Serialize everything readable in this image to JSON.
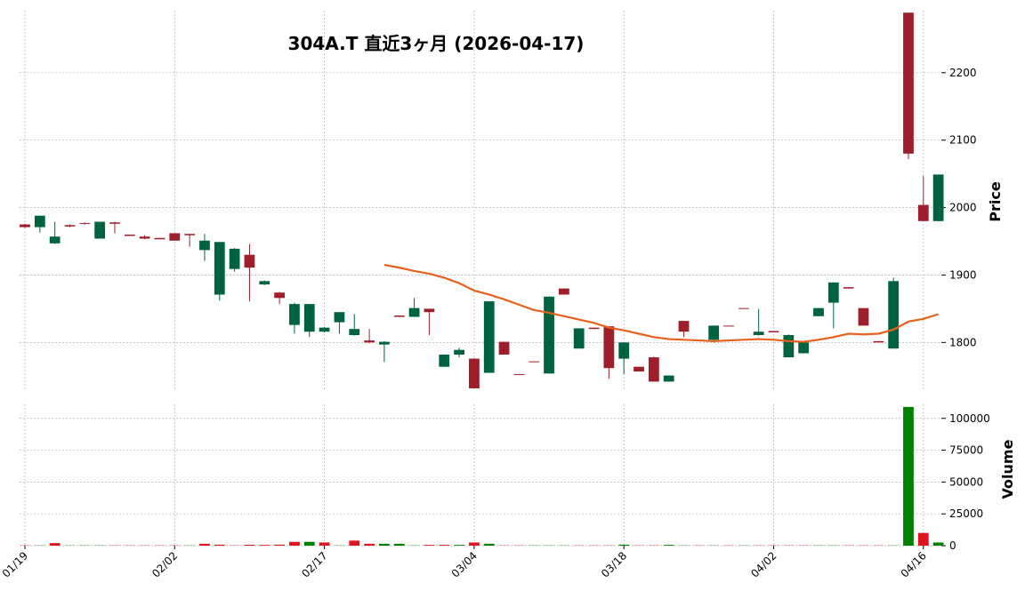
{
  "chart_data": {
    "type": "candlestick",
    "title": "304A.T  直近3ヶ月  (2026-04-17)",
    "ylabel": "Price",
    "y2label": "Volume",
    "categories": [
      "01/19",
      null,
      null,
      null,
      null,
      null,
      null,
      null,
      null,
      null,
      "02/02",
      null,
      null,
      null,
      null,
      null,
      null,
      null,
      null,
      null,
      "02/17",
      null,
      null,
      null,
      null,
      null,
      null,
      null,
      null,
      null,
      "03/04",
      null,
      null,
      null,
      null,
      null,
      null,
      null,
      null,
      null,
      "03/18",
      null,
      null,
      null,
      null,
      null,
      null,
      null,
      null,
      null,
      "04/02",
      null,
      null,
      null,
      null,
      null,
      null,
      null,
      null,
      null,
      "04/16",
      null
    ],
    "open": [
      1975,
      1971,
      1947,
      1974,
      1977,
      1954,
      1978,
      1960,
      1957,
      1955,
      1962,
      1961,
      1937,
      1871,
      1909,
      1930,
      1886,
      1874,
      1826,
      1816,
      1816,
      1830,
      1811,
      1803,
      1797,
      1840,
      1838,
      1850,
      1764,
      1782,
      1776,
      1755,
      1801,
      1753,
      1772,
      1754,
      1880,
      1791,
      1822,
      1824,
      1776,
      1764,
      1778,
      1742,
      1832,
      1804,
      1804,
      1825,
      1851,
      1811,
      1817,
      1778,
      1784,
      1839,
      1859,
      1882,
      1851,
      1802,
      1791,
      2289,
      2004,
      1980
    ],
    "high": [
      1976,
      1988,
      1979,
      1975,
      1978,
      1979,
      1979,
      1960,
      1959,
      1955,
      1962,
      1961,
      1961,
      1949,
      1940,
      1946,
      1892,
      1875,
      1859,
      1857,
      1823,
      1845,
      1842,
      1820,
      1802,
      1840,
      1866,
      1850,
      1782,
      1792,
      1777,
      1861,
      1801,
      1753,
      1772,
      1868,
      1880,
      1821,
      1822,
      1824,
      1800,
      1764,
      1779,
      1751,
      1832,
      1804,
      1825,
      1825,
      1851,
      1850,
      1817,
      1812,
      1800,
      1851,
      1889,
      1882,
      1851,
      1802,
      1896,
      2289,
      2047,
      2049
    ],
    "low": [
      1970,
      1963,
      1946,
      1971,
      1975,
      1954,
      1962,
      1958,
      1953,
      1953,
      1951,
      1942,
      1921,
      1862,
      1905,
      1861,
      1885,
      1857,
      1813,
      1808,
      1815,
      1813,
      1810,
      1799,
      1771,
      1838,
      1838,
      1811,
      1764,
      1778,
      1732,
      1755,
      1782,
      1752,
      1771,
      1754,
      1871,
      1791,
      1820,
      1746,
      1753,
      1757,
      1742,
      1742,
      1808,
      1802,
      1800,
      1824,
      1850,
      1810,
      1815,
      1778,
      1784,
      1839,
      1821,
      1880,
      1825,
      1800,
      1791,
      2072,
      1980,
      1980
    ],
    "close": [
      1971,
      1988,
      1957,
      1972,
      1976,
      1979,
      1976,
      1958,
      1954,
      1953,
      1951,
      1959,
      1951,
      1949,
      1939,
      1911,
      1891,
      1866,
      1857,
      1857,
      1822,
      1845,
      1820,
      1800,
      1801,
      1838,
      1851,
      1845,
      1782,
      1789,
      1732,
      1861,
      1782,
      1752,
      1771,
      1868,
      1871,
      1821,
      1820,
      1762,
      1800,
      1757,
      1742,
      1751,
      1816,
      1802,
      1825,
      1824,
      1850,
      1816,
      1815,
      1811,
      1800,
      1851,
      1889,
      1880,
      1825,
      1800,
      1891,
      2080,
      1980,
      2049
    ],
    "up_color": "#006340",
    "down_color": "#9e1f2a",
    "ma": {
      "color": "#e8601c",
      "values": [
        null,
        null,
        null,
        null,
        null,
        null,
        null,
        null,
        null,
        null,
        null,
        null,
        null,
        null,
        null,
        null,
        null,
        null,
        null,
        null,
        null,
        null,
        null,
        null,
        1915,
        1911,
        1906,
        1902,
        1896,
        1888,
        1877,
        1871,
        1864,
        1856,
        1848,
        1844,
        1839,
        1834,
        1829,
        1822,
        1818,
        1813,
        1808,
        1805,
        1804,
        1803,
        1802,
        1803,
        1804,
        1805,
        1804,
        1802,
        1801,
        1804,
        1808,
        1813,
        1812,
        1813,
        1819,
        1831,
        1835,
        1842
      ]
    },
    "ylim": [
      1728,
      2292
    ],
    "yticks": [
      1800,
      1900,
      2000,
      2100,
      2200
    ],
    "volume": {
      "up_color": "#008000",
      "down_color": "#e0141e",
      "values": [
        200,
        200,
        2000,
        200,
        200,
        200,
        200,
        200,
        200,
        200,
        200,
        200,
        1500,
        800,
        200,
        700,
        600,
        800,
        3000,
        3000,
        2500,
        200,
        4000,
        1500,
        1500,
        1500,
        200,
        600,
        600,
        600,
        2500,
        1500,
        200,
        200,
        200,
        200,
        200,
        200,
        200,
        200,
        800,
        200,
        200,
        600,
        200,
        200,
        200,
        200,
        200,
        200,
        200,
        200,
        200,
        200,
        200,
        200,
        200,
        200,
        200,
        109000,
        10000,
        2500
      ]
    },
    "y2lim": [
      0,
      111000
    ],
    "y2ticks": [
      0,
      25000,
      50000,
      75000,
      100000
    ],
    "grid": true
  }
}
